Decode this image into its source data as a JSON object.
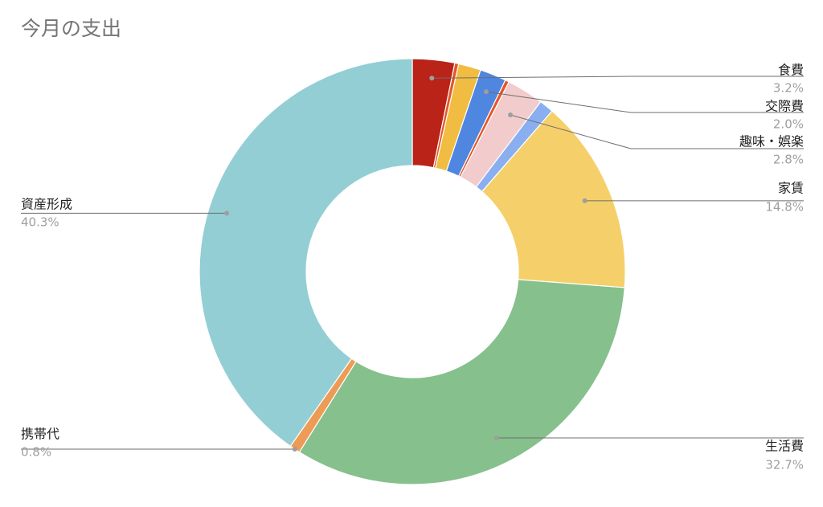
{
  "chart_data": {
    "type": "pie",
    "title": "今月の支出",
    "donut": true,
    "slices": [
      {
        "name": "食費",
        "value": 3.2,
        "label": "3.2%",
        "color": "#b92318",
        "labeled": true
      },
      {
        "name": "",
        "value": 0.3,
        "label": "",
        "color": "#e6562a",
        "labeled": false
      },
      {
        "name": "",
        "value": 1.7,
        "label": "",
        "color": "#f0bd42",
        "labeled": false
      },
      {
        "name": "交際費",
        "value": 2.0,
        "label": "2.0%",
        "color": "#4f86e0",
        "labeled": true
      },
      {
        "name": "",
        "value": 0.3,
        "label": "",
        "color": "#e6562a",
        "labeled": false
      },
      {
        "name": "趣味・娯楽",
        "value": 2.8,
        "label": "2.8%",
        "color": "#f2cccc",
        "labeled": true
      },
      {
        "name": "",
        "value": 1.1,
        "label": "",
        "color": "#8aaff0",
        "labeled": false
      },
      {
        "name": "家賃",
        "value": 14.8,
        "label": "14.8%",
        "color": "#f5d06a",
        "labeled": true
      },
      {
        "name": "生活費",
        "value": 32.7,
        "label": "32.7%",
        "color": "#86c08c",
        "labeled": true
      },
      {
        "name": "携帯代",
        "value": 0.8,
        "label": "0.8%",
        "color": "#ee9b55",
        "labeled": true
      },
      {
        "name": "資産形成",
        "value": 40.3,
        "label": "40.3%",
        "color": "#93ced5",
        "labeled": true
      }
    ]
  }
}
